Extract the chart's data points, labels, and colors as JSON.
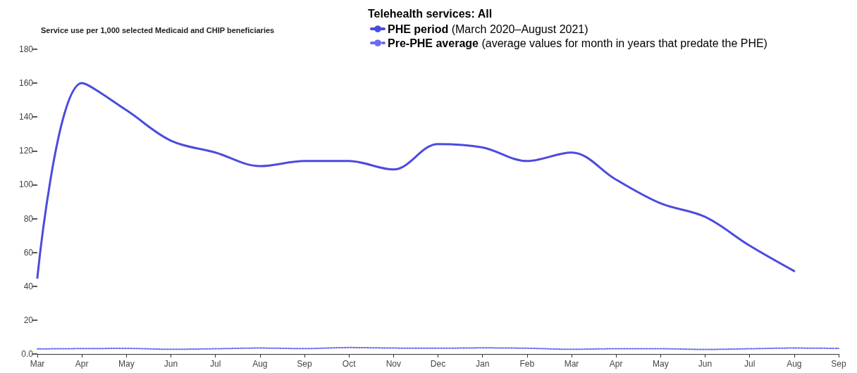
{
  "chart_data": {
    "type": "line",
    "title": "Service use per 1,000 selected Medicaid and CHIP beneficiaries",
    "legend_title": "Telehealth services: All",
    "categories": [
      "Mar",
      "Apr",
      "May",
      "Jun",
      "Jul",
      "Aug",
      "Sep",
      "Oct",
      "Nov",
      "Dec",
      "Jan",
      "Feb",
      "Mar",
      "Apr",
      "May",
      "Jun",
      "Jul",
      "Aug",
      "Sep"
    ],
    "series": [
      {
        "name": "PHE period (March 2020–August 2021)",
        "color": "#4b4bdf",
        "line_style": "solid",
        "values": [
          45,
          160,
          144,
          126,
          119,
          111,
          114,
          114,
          109,
          124,
          122,
          114,
          119,
          103,
          89,
          81,
          64,
          49,
          null
        ]
      },
      {
        "name": "Pre-PHE average (average values for month in years that predate the PHE)",
        "color": "#6b6bf0",
        "line_style": "dotted",
        "values": [
          3,
          3.2,
          3.3,
          2.8,
          3.1,
          3.5,
          3.2,
          3.8,
          3.5,
          3.4,
          3.6,
          3.4,
          2.8,
          3.1,
          3.1,
          2.7,
          3.1,
          3.5,
          3.3
        ]
      }
    ],
    "ylim": [
      0,
      180
    ],
    "yticks": [
      {
        "value": 0,
        "label": "0.0"
      },
      20,
      40,
      60,
      80,
      100,
      120,
      140,
      160,
      180
    ],
    "grid": false,
    "legend": "top right",
    "marker": "none"
  }
}
